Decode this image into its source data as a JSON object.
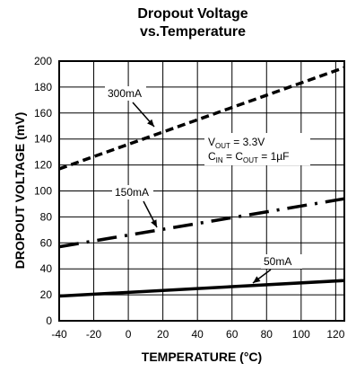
{
  "chart_data": {
    "type": "line",
    "title": "Dropout Voltage",
    "subtitle": "vs.Temperature",
    "xlabel": "TEMPERATURE (°C)",
    "ylabel": "DROPOUT VOLTAGE (mV)",
    "xlim": [
      -40,
      125
    ],
    "ylim": [
      0,
      200
    ],
    "x_ticks": [
      -40,
      -20,
      0,
      20,
      40,
      60,
      80,
      100,
      120
    ],
    "y_ticks": [
      0,
      20,
      40,
      60,
      80,
      100,
      120,
      140,
      160,
      180,
      200
    ],
    "x_tick_labels": [
      "-40",
      "-20",
      "0",
      "20",
      "40",
      "60",
      "80",
      "100",
      "120"
    ],
    "y_tick_labels": [
      "0",
      "20",
      "40",
      "60",
      "80",
      "100",
      "120",
      "140",
      "160",
      "180",
      "200"
    ],
    "grid": true,
    "series": [
      {
        "name": "300mA",
        "line_style": "dashed",
        "x": [
          -40,
          125
        ],
        "y": [
          117,
          195
        ]
      },
      {
        "name": "150mA",
        "line_style": "dash-dot",
        "x": [
          -40,
          125
        ],
        "y": [
          57,
          94
        ]
      },
      {
        "name": "50mA",
        "line_style": "solid",
        "x": [
          -40,
          125
        ],
        "y": [
          19,
          31
        ]
      }
    ],
    "annotations": {
      "conditions_line1_main": "V",
      "conditions_line1_sub": "OUT",
      "conditions_line1_rest": " = 3.3V",
      "conditions_line2_c1": "C",
      "conditions_line2_sub1": "IN",
      "conditions_line2_mid": " = C",
      "conditions_line2_sub2": "OUT",
      "conditions_line2_rest": " = 1µF"
    }
  }
}
